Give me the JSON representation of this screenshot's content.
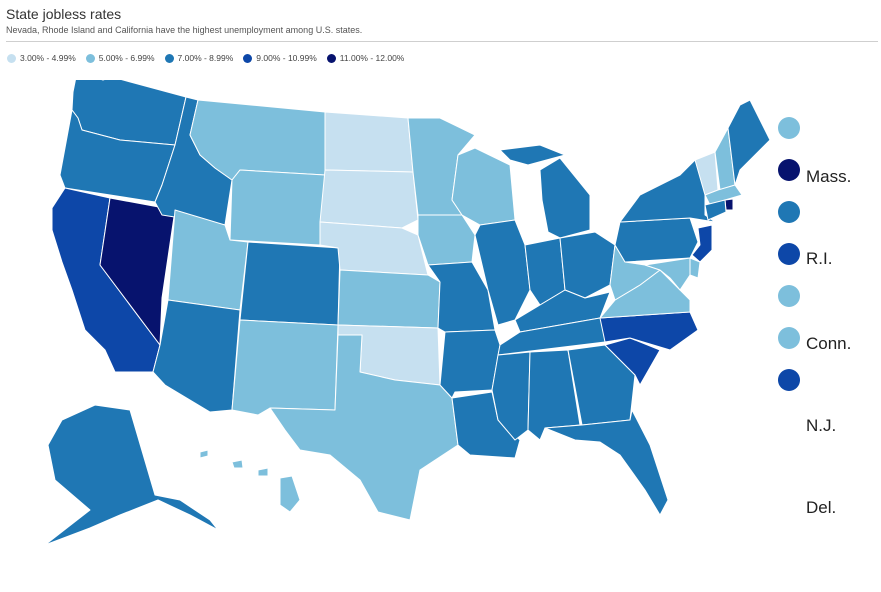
{
  "header": {
    "title": "State jobless rates",
    "subtitle": "Nevada, Rhode Island and California have the highest unemployment among U.S. states."
  },
  "legend": [
    {
      "label": "3.00% - 4.99%",
      "color": "#c6e0f0"
    },
    {
      "label": "5.00% - 6.99%",
      "color": "#7dbfdc"
    },
    {
      "label": "7.00% - 8.99%",
      "color": "#1f77b4"
    },
    {
      "label": "9.00% - 10.99%",
      "color": "#0d47a8"
    },
    {
      "label": "11.00% - 12.00%",
      "color": "#07136e"
    }
  ],
  "states": [
    {
      "abbr": "WA",
      "bin": 3
    },
    {
      "abbr": "OR",
      "bin": 3
    },
    {
      "abbr": "CA",
      "bin": 4
    },
    {
      "abbr": "NV",
      "bin": 5
    },
    {
      "abbr": "ID",
      "bin": 3
    },
    {
      "abbr": "MT",
      "bin": 2
    },
    {
      "abbr": "WY",
      "bin": 2
    },
    {
      "abbr": "UT",
      "bin": 2
    },
    {
      "abbr": "AZ",
      "bin": 3
    },
    {
      "abbr": "CO",
      "bin": 3
    },
    {
      "abbr": "NM",
      "bin": 2
    },
    {
      "abbr": "ND",
      "bin": 1
    },
    {
      "abbr": "SD",
      "bin": 1
    },
    {
      "abbr": "NE",
      "bin": 1
    },
    {
      "abbr": "KS",
      "bin": 2
    },
    {
      "abbr": "OK",
      "bin": 1
    },
    {
      "abbr": "TX",
      "bin": 2
    },
    {
      "abbr": "MN",
      "bin": 2
    },
    {
      "abbr": "IA",
      "bin": 2
    },
    {
      "abbr": "MO",
      "bin": 3
    },
    {
      "abbr": "AR",
      "bin": 3
    },
    {
      "abbr": "LA",
      "bin": 3
    },
    {
      "abbr": "WI",
      "bin": 2
    },
    {
      "abbr": "IL",
      "bin": 3
    },
    {
      "abbr": "MI",
      "bin": 3
    },
    {
      "abbr": "IN",
      "bin": 3
    },
    {
      "abbr": "OH",
      "bin": 3
    },
    {
      "abbr": "KY",
      "bin": 3
    },
    {
      "abbr": "TN",
      "bin": 3
    },
    {
      "abbr": "MS",
      "bin": 3
    },
    {
      "abbr": "AL",
      "bin": 3
    },
    {
      "abbr": "GA",
      "bin": 3
    },
    {
      "abbr": "FL",
      "bin": 3
    },
    {
      "abbr": "SC",
      "bin": 4
    },
    {
      "abbr": "NC",
      "bin": 4
    },
    {
      "abbr": "VA",
      "bin": 2
    },
    {
      "abbr": "WV",
      "bin": 2
    },
    {
      "abbr": "PA",
      "bin": 3
    },
    {
      "abbr": "NY",
      "bin": 3
    },
    {
      "abbr": "VT",
      "bin": 1
    },
    {
      "abbr": "NH",
      "bin": 2
    },
    {
      "abbr": "ME",
      "bin": 3
    },
    {
      "abbr": "MA",
      "bin": 2
    },
    {
      "abbr": "RI",
      "bin": 5
    },
    {
      "abbr": "CT",
      "bin": 3
    },
    {
      "abbr": "NJ",
      "bin": 4
    },
    {
      "abbr": "DE",
      "bin": 2
    },
    {
      "abbr": "MD",
      "bin": 2
    },
    {
      "abbr": "AK",
      "bin": 3
    },
    {
      "abbr": "HI",
      "bin": 2
    }
  ],
  "side_legend": [
    {
      "label": "",
      "color": "#7dbfdc"
    },
    {
      "label": "Mass.",
      "color": "#07136e"
    },
    {
      "label": "",
      "color": "#1f77b4"
    },
    {
      "label": "R.I.",
      "color": "#0d47a8"
    },
    {
      "label": "",
      "color": "#7dbfdc"
    },
    {
      "label": "Conn.",
      "color": "#7dbfdc"
    },
    {
      "label": "",
      "color": "#0d47a8"
    },
    {
      "label": "N.J.",
      "color": ""
    },
    {
      "label": "Del.",
      "color": ""
    }
  ]
}
